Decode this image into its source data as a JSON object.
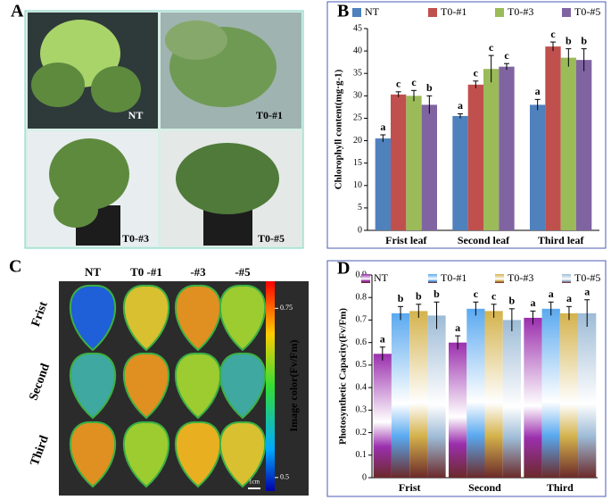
{
  "panel_a": {
    "label": "A",
    "photos": [
      "NT",
      "T0-#1",
      "T0-#3",
      "T0-#5"
    ]
  },
  "panel_c": {
    "label": "C",
    "columns": [
      "NT",
      "T0 -#1",
      "-#3",
      "-#5"
    ],
    "rows": [
      "Frist",
      "Second",
      "Third"
    ],
    "colorbar_label": "Image color(Fv/Fm)",
    "colorbar_lim": [
      0.48,
      0.79
    ],
    "colorbar_ticks": [
      0.75,
      0.5
    ],
    "scale_bar": "1cm"
  },
  "chart_data": [
    {
      "type": "bar",
      "panel_label": "B",
      "y_label": "Chlorophyll content(mg·g-1)",
      "categories": [
        "Frist leaf",
        "Second leaf",
        "Third leaf"
      ],
      "series": [
        {
          "name": "NT",
          "color": "#4f81bd",
          "values": [
            20.5,
            25.5,
            28
          ],
          "errors": [
            0.8,
            0.5,
            1.2
          ],
          "letters": [
            "a",
            "a",
            "a"
          ]
        },
        {
          "name": "T0-#1",
          "color": "#c0504d",
          "values": [
            30.3,
            32.5,
            41
          ],
          "errors": [
            0.6,
            0.8,
            1
          ],
          "letters": [
            "c",
            "c",
            "c"
          ]
        },
        {
          "name": "T0-#3",
          "color": "#9bbb59",
          "values": [
            30,
            36,
            38.5
          ],
          "errors": [
            1.2,
            3,
            2
          ],
          "letters": [
            "c",
            "c",
            "b"
          ]
        },
        {
          "name": "T0-#5",
          "color": "#8064a2",
          "values": [
            28,
            36.5,
            38
          ],
          "errors": [
            2,
            0.7,
            2.5
          ],
          "letters": [
            "b",
            "c",
            "b"
          ]
        }
      ],
      "ylim": [
        0,
        45
      ],
      "yticks": [
        0,
        5,
        10,
        15,
        20,
        25,
        30,
        35,
        40,
        45
      ],
      "gradient": false
    },
    {
      "type": "bar",
      "panel_label": "D",
      "y_label": "Photosynthetic Capacity(Fv/Fm)",
      "categories": [
        "Frist",
        "Second",
        "Third"
      ],
      "series": [
        {
          "name": "NT",
          "color": "#9b2fae",
          "values": [
            0.55,
            0.6,
            0.71
          ],
          "errors": [
            0.03,
            0.03,
            0.03
          ],
          "letters": [
            "a",
            "a",
            "a"
          ]
        },
        {
          "name": "T0-#1",
          "color": "#5aa9f0",
          "values": [
            0.73,
            0.75,
            0.75
          ],
          "errors": [
            0.03,
            0.03,
            0.03
          ],
          "letters": [
            "b",
            "c",
            "a"
          ]
        },
        {
          "name": "T0-#3",
          "color": "#d4b24c",
          "values": [
            0.74,
            0.74,
            0.73
          ],
          "errors": [
            0.03,
            0.03,
            0.03
          ],
          "letters": [
            "b",
            "c",
            "a"
          ]
        },
        {
          "name": "T0-#5",
          "color": "#9dbbd6",
          "values": [
            0.72,
            0.7,
            0.73
          ],
          "errors": [
            0.06,
            0.05,
            0.06
          ],
          "letters": [
            "b",
            "b",
            "a"
          ]
        }
      ],
      "ylim": [
        0,
        0.9
      ],
      "yticks": [
        0,
        0.1,
        0.2,
        0.3,
        0.4,
        0.5,
        0.6,
        0.7,
        0.8,
        0.9
      ],
      "gradient": true
    }
  ]
}
